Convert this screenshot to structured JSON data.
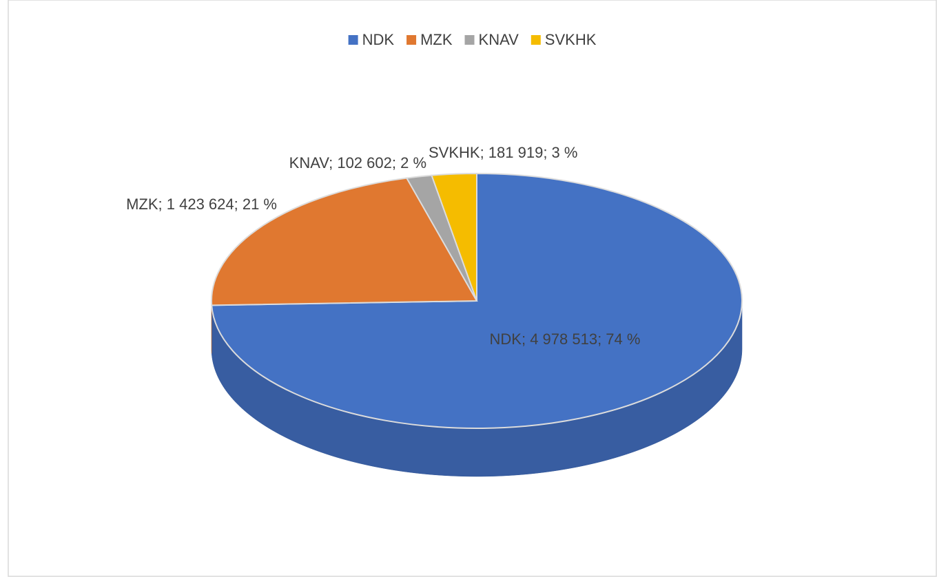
{
  "chart_data": {
    "type": "pie3d",
    "categories": [
      "NDK",
      "MZK",
      "KNAV",
      "SVKHK"
    ],
    "values": [
      4978513,
      1423624,
      102602,
      181919
    ],
    "value_labels": [
      "NDK; 4 978 513; 74 %",
      "MZK; 1 423 624; 21 %",
      "KNAV; 102 602; 2 %",
      "SVKHK; 181 919; 3 %"
    ],
    "colors": [
      "#4472c4",
      "#e07830",
      "#a5a5a5",
      "#f5bc00"
    ],
    "legend": "top"
  }
}
